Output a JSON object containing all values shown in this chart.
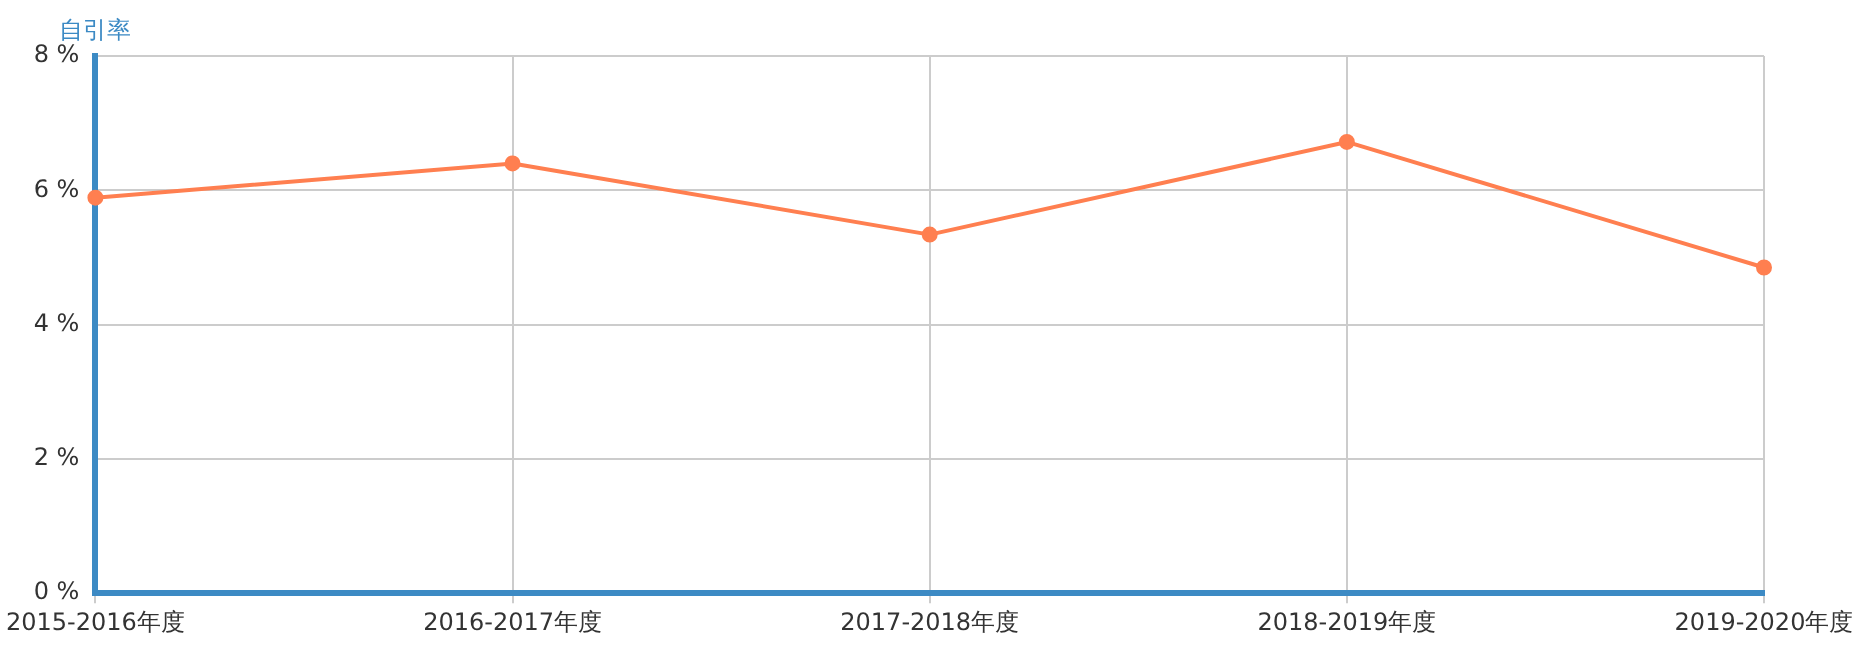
{
  "chart_data": {
    "type": "line",
    "ylabel": "自引率",
    "categories": [
      "2015-2016年度",
      "2016-2017年度",
      "2017-2018年度",
      "2018-2019年度",
      "2019-2020年度"
    ],
    "series": [
      {
        "color": "#ff7f50",
        "values": [
          5.89,
          6.4,
          5.34,
          6.72,
          4.85
        ]
      }
    ],
    "ylim": [
      0,
      8
    ],
    "yticks": [
      {
        "value": 0,
        "label": "0 %"
      },
      {
        "value": 2,
        "label": "2 %"
      },
      {
        "value": 4,
        "label": "4 %"
      },
      {
        "value": 6,
        "label": "6 %"
      },
      {
        "value": 8,
        "label": "8 %"
      }
    ],
    "grid": true,
    "legend": false,
    "marker": "circle",
    "line_style": "solid"
  }
}
